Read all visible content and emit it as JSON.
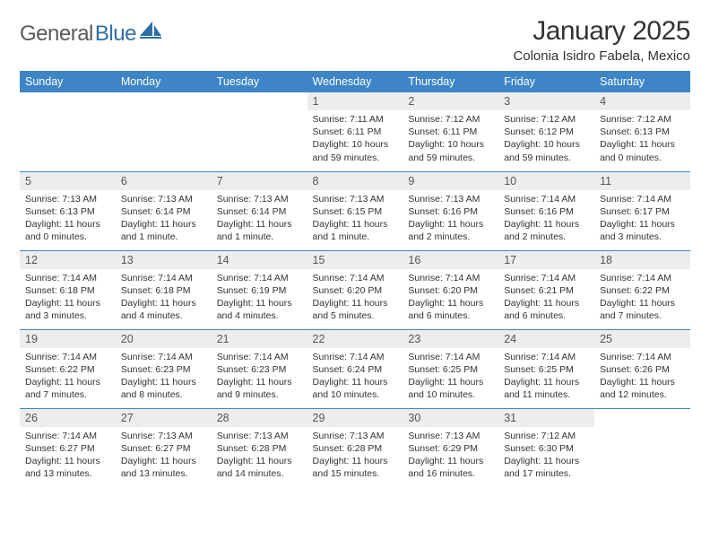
{
  "logo": {
    "textA": "General",
    "textB": "Blue"
  },
  "title": "January 2025",
  "location": "Colonia Isidro Fabela, Mexico",
  "colors": {
    "header_bg": "#3d85c6",
    "header_text": "#ffffff",
    "daynum_bg": "#ededed",
    "row_border": "#3d85c6",
    "page_bg": "#ffffff",
    "body_text": "#333333",
    "logo_gray": "#5a5a5a",
    "logo_blue": "#2f6fa7"
  },
  "typography": {
    "title_fontsize": 30,
    "location_fontsize": 15,
    "dayheader_fontsize": 12.5,
    "daynum_fontsize": 12.5,
    "body_fontsize": 10.5
  },
  "dayHeaders": [
    "Sunday",
    "Monday",
    "Tuesday",
    "Wednesday",
    "Thursday",
    "Friday",
    "Saturday"
  ],
  "weeks": [
    [
      null,
      null,
      null,
      {
        "n": "1",
        "sr": "7:11 AM",
        "ss": "6:11 PM",
        "dl": "10 hours and 59 minutes."
      },
      {
        "n": "2",
        "sr": "7:12 AM",
        "ss": "6:11 PM",
        "dl": "10 hours and 59 minutes."
      },
      {
        "n": "3",
        "sr": "7:12 AM",
        "ss": "6:12 PM",
        "dl": "10 hours and 59 minutes."
      },
      {
        "n": "4",
        "sr": "7:12 AM",
        "ss": "6:13 PM",
        "dl": "11 hours and 0 minutes."
      }
    ],
    [
      {
        "n": "5",
        "sr": "7:13 AM",
        "ss": "6:13 PM",
        "dl": "11 hours and 0 minutes."
      },
      {
        "n": "6",
        "sr": "7:13 AM",
        "ss": "6:14 PM",
        "dl": "11 hours and 1 minute."
      },
      {
        "n": "7",
        "sr": "7:13 AM",
        "ss": "6:14 PM",
        "dl": "11 hours and 1 minute."
      },
      {
        "n": "8",
        "sr": "7:13 AM",
        "ss": "6:15 PM",
        "dl": "11 hours and 1 minute."
      },
      {
        "n": "9",
        "sr": "7:13 AM",
        "ss": "6:16 PM",
        "dl": "11 hours and 2 minutes."
      },
      {
        "n": "10",
        "sr": "7:14 AM",
        "ss": "6:16 PM",
        "dl": "11 hours and 2 minutes."
      },
      {
        "n": "11",
        "sr": "7:14 AM",
        "ss": "6:17 PM",
        "dl": "11 hours and 3 minutes."
      }
    ],
    [
      {
        "n": "12",
        "sr": "7:14 AM",
        "ss": "6:18 PM",
        "dl": "11 hours and 3 minutes."
      },
      {
        "n": "13",
        "sr": "7:14 AM",
        "ss": "6:18 PM",
        "dl": "11 hours and 4 minutes."
      },
      {
        "n": "14",
        "sr": "7:14 AM",
        "ss": "6:19 PM",
        "dl": "11 hours and 4 minutes."
      },
      {
        "n": "15",
        "sr": "7:14 AM",
        "ss": "6:20 PM",
        "dl": "11 hours and 5 minutes."
      },
      {
        "n": "16",
        "sr": "7:14 AM",
        "ss": "6:20 PM",
        "dl": "11 hours and 6 minutes."
      },
      {
        "n": "17",
        "sr": "7:14 AM",
        "ss": "6:21 PM",
        "dl": "11 hours and 6 minutes."
      },
      {
        "n": "18",
        "sr": "7:14 AM",
        "ss": "6:22 PM",
        "dl": "11 hours and 7 minutes."
      }
    ],
    [
      {
        "n": "19",
        "sr": "7:14 AM",
        "ss": "6:22 PM",
        "dl": "11 hours and 7 minutes."
      },
      {
        "n": "20",
        "sr": "7:14 AM",
        "ss": "6:23 PM",
        "dl": "11 hours and 8 minutes."
      },
      {
        "n": "21",
        "sr": "7:14 AM",
        "ss": "6:23 PM",
        "dl": "11 hours and 9 minutes."
      },
      {
        "n": "22",
        "sr": "7:14 AM",
        "ss": "6:24 PM",
        "dl": "11 hours and 10 minutes."
      },
      {
        "n": "23",
        "sr": "7:14 AM",
        "ss": "6:25 PM",
        "dl": "11 hours and 10 minutes."
      },
      {
        "n": "24",
        "sr": "7:14 AM",
        "ss": "6:25 PM",
        "dl": "11 hours and 11 minutes."
      },
      {
        "n": "25",
        "sr": "7:14 AM",
        "ss": "6:26 PM",
        "dl": "11 hours and 12 minutes."
      }
    ],
    [
      {
        "n": "26",
        "sr": "7:14 AM",
        "ss": "6:27 PM",
        "dl": "11 hours and 13 minutes."
      },
      {
        "n": "27",
        "sr": "7:13 AM",
        "ss": "6:27 PM",
        "dl": "11 hours and 13 minutes."
      },
      {
        "n": "28",
        "sr": "7:13 AM",
        "ss": "6:28 PM",
        "dl": "11 hours and 14 minutes."
      },
      {
        "n": "29",
        "sr": "7:13 AM",
        "ss": "6:28 PM",
        "dl": "11 hours and 15 minutes."
      },
      {
        "n": "30",
        "sr": "7:13 AM",
        "ss": "6:29 PM",
        "dl": "11 hours and 16 minutes."
      },
      {
        "n": "31",
        "sr": "7:12 AM",
        "ss": "6:30 PM",
        "dl": "11 hours and 17 minutes."
      },
      null
    ]
  ],
  "labels": {
    "sunrise": "Sunrise:",
    "sunset": "Sunset:",
    "daylight": "Daylight:"
  }
}
